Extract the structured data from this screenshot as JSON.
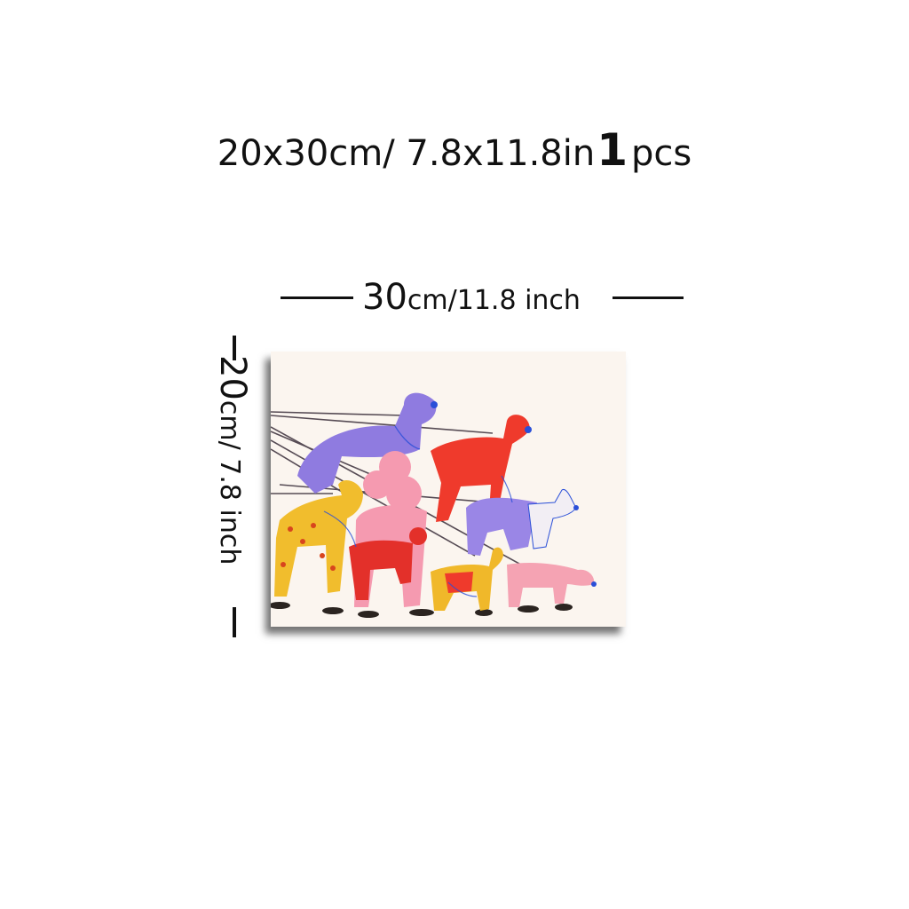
{
  "title": {
    "size": "20x30cm/ 7.8x11.8in",
    "count": "1",
    "unit": "pcs"
  },
  "width_label": {
    "value": "30",
    "unit": "cm/11.8 inch"
  },
  "height_label": {
    "value": "20",
    "unit": "cm/ 7.8 inch"
  },
  "artwork": {
    "subject": "dogs-on-leashes-illustration",
    "colors": [
      "#8f7be0",
      "#ef3a2c",
      "#f1bd2d",
      "#f59ab0",
      "#2a4fd8"
    ]
  }
}
